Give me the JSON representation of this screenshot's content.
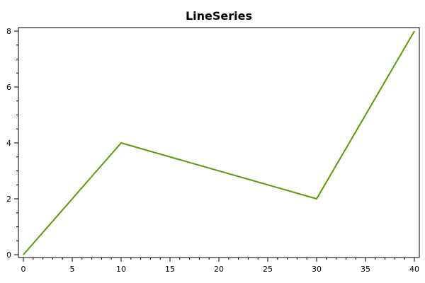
{
  "chart_data": {
    "type": "line",
    "title": "LineSeries",
    "xlabel": "",
    "ylabel": "",
    "xlim": [
      0,
      40
    ],
    "ylim": [
      0,
      8
    ],
    "x_major_ticks": [
      0,
      5,
      10,
      15,
      20,
      25,
      30,
      35,
      40
    ],
    "x_minor_step": 1,
    "y_major_ticks": [
      0,
      2,
      4,
      6,
      8
    ],
    "y_minor_step": 0.5,
    "grid": false,
    "series": [
      {
        "color": "#5a9a0c",
        "x": [
          0,
          10,
          30,
          40
        ],
        "y": [
          0,
          4,
          2,
          8
        ]
      }
    ]
  }
}
